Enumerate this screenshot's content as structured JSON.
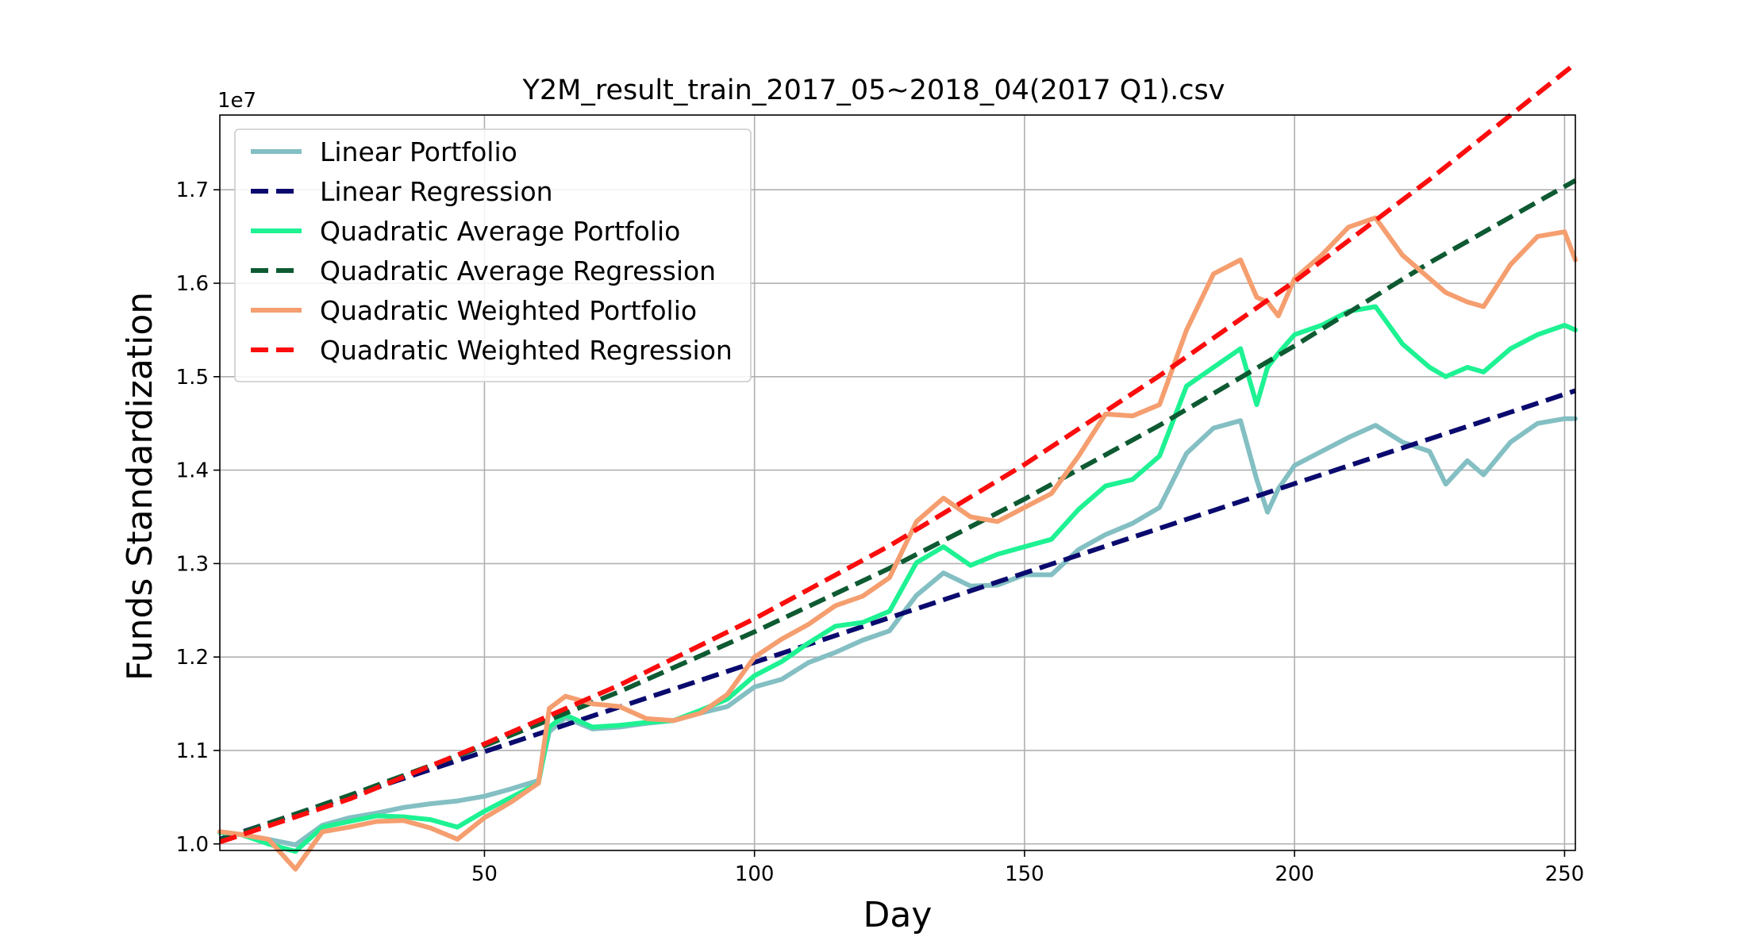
{
  "chart_data": {
    "type": "line",
    "title": "Y2M_result_train_2017_05~2018_04(2017 Q1).csv",
    "xlabel": "Day",
    "ylabel": "Funds Standardization",
    "y_offset_text": "1e7",
    "xlim": [
      1,
      252
    ],
    "ylim": [
      9930000,
      17800000
    ],
    "x_ticks": [
      50,
      100,
      150,
      200,
      250
    ],
    "y_ticks": [
      10000000,
      11000000,
      12000000,
      13000000,
      14000000,
      15000000,
      16000000,
      17000000
    ],
    "y_tick_labels": [
      "1.0",
      "1.1",
      "1.2",
      "1.3",
      "1.4",
      "1.5",
      "1.6",
      "1.7"
    ],
    "grid": true,
    "legend_position": "upper-left",
    "series": [
      {
        "name": "Linear Portfolio",
        "color": "#83bfc3",
        "style": "solid",
        "x": [
          1,
          5,
          10,
          15,
          20,
          25,
          30,
          35,
          40,
          45,
          50,
          55,
          60,
          62,
          65,
          70,
          75,
          80,
          85,
          90,
          95,
          100,
          105,
          110,
          115,
          120,
          125,
          130,
          135,
          140,
          145,
          150,
          155,
          160,
          165,
          170,
          175,
          180,
          185,
          190,
          193,
          195,
          197,
          200,
          205,
          210,
          215,
          220,
          225,
          228,
          232,
          235,
          240,
          245,
          250,
          252
        ],
        "y": [
          10130000,
          10100000,
          10050000,
          9990000,
          10200000,
          10280000,
          10330000,
          10390000,
          10430000,
          10460000,
          10510000,
          10590000,
          10680000,
          11200000,
          11350000,
          11230000,
          11250000,
          11290000,
          11320000,
          11400000,
          11470000,
          11680000,
          11760000,
          11940000,
          12050000,
          12180000,
          12280000,
          12660000,
          12900000,
          12760000,
          12770000,
          12880000,
          12880000,
          13150000,
          13310000,
          13430000,
          13600000,
          14180000,
          14450000,
          14530000,
          13900000,
          13550000,
          13800000,
          14050000,
          14200000,
          14350000,
          14480000,
          14300000,
          14200000,
          13850000,
          14100000,
          13950000,
          14300000,
          14500000,
          14550000,
          14550000
        ]
      },
      {
        "name": "Linear Regression",
        "color": "#0a0a6e",
        "style": "dashed",
        "x": [
          1,
          252
        ],
        "y": [
          10050000,
          14850000
        ]
      },
      {
        "name": "Quadratic Average Portfolio",
        "color": "#1ef293",
        "style": "solid",
        "x": [
          1,
          5,
          10,
          15,
          20,
          25,
          30,
          35,
          40,
          45,
          50,
          55,
          60,
          62,
          65,
          70,
          75,
          80,
          85,
          90,
          95,
          100,
          105,
          110,
          115,
          120,
          125,
          130,
          135,
          140,
          145,
          150,
          155,
          160,
          165,
          170,
          175,
          180,
          185,
          190,
          193,
          195,
          197,
          200,
          205,
          210,
          215,
          220,
          225,
          228,
          232,
          235,
          240,
          245,
          250,
          252
        ],
        "y": [
          10120000,
          10100000,
          10000000,
          9920000,
          10180000,
          10240000,
          10300000,
          10290000,
          10260000,
          10180000,
          10350000,
          10500000,
          10650000,
          11250000,
          11380000,
          11250000,
          11270000,
          11300000,
          11320000,
          11430000,
          11550000,
          11800000,
          11950000,
          12150000,
          12330000,
          12370000,
          12490000,
          13010000,
          13180000,
          12980000,
          13100000,
          13180000,
          13260000,
          13580000,
          13830000,
          13900000,
          14150000,
          14900000,
          15100000,
          15300000,
          14700000,
          15100000,
          15250000,
          15450000,
          15550000,
          15700000,
          15750000,
          15350000,
          15100000,
          15000000,
          15100000,
          15050000,
          15300000,
          15450000,
          15550000,
          15500000
        ]
      },
      {
        "name": "Quadratic Average Regression",
        "color": "#0e5a32",
        "style": "dashed",
        "x": [
          1,
          25,
          50,
          75,
          100,
          125,
          150,
          175,
          200,
          225,
          252
        ],
        "y": [
          10040000,
          10520000,
          11050000,
          11630000,
          12270000,
          12950000,
          13690000,
          14480000,
          15330000,
          16220000,
          17100000
        ]
      },
      {
        "name": "Quadratic Weighted Portfolio",
        "color": "#f59e6f",
        "style": "solid",
        "x": [
          1,
          5,
          10,
          15,
          20,
          25,
          30,
          35,
          40,
          45,
          50,
          55,
          60,
          62,
          65,
          70,
          75,
          80,
          85,
          90,
          95,
          100,
          105,
          110,
          115,
          120,
          125,
          130,
          135,
          140,
          145,
          150,
          155,
          160,
          165,
          170,
          175,
          180,
          185,
          190,
          193,
          195,
          197,
          200,
          205,
          210,
          215,
          220,
          225,
          228,
          232,
          235,
          240,
          245,
          250,
          252
        ],
        "y": [
          10130000,
          10100000,
          10050000,
          9730000,
          10130000,
          10180000,
          10240000,
          10250000,
          10170000,
          10050000,
          10280000,
          10450000,
          10650000,
          11450000,
          11580000,
          11500000,
          11470000,
          11340000,
          11320000,
          11400000,
          11600000,
          12000000,
          12190000,
          12350000,
          12550000,
          12650000,
          12850000,
          13450000,
          13700000,
          13500000,
          13450000,
          13600000,
          13750000,
          14150000,
          14600000,
          14580000,
          14700000,
          15500000,
          16100000,
          16250000,
          15850000,
          15800000,
          15650000,
          16050000,
          16300000,
          16600000,
          16700000,
          16300000,
          16050000,
          15900000,
          15800000,
          15750000,
          16200000,
          16500000,
          16550000,
          16250000
        ]
      },
      {
        "name": "Quadratic Weighted Regression",
        "color": "#fb0d0d",
        "style": "dashed",
        "x": [
          1,
          25,
          50,
          75,
          100,
          125,
          150,
          175,
          200,
          225,
          252
        ],
        "y": [
          10020000,
          10480000,
          11070000,
          11700000,
          12410000,
          13190000,
          14060000,
          15010000,
          16020000,
          17110000,
          18350000
        ]
      }
    ]
  }
}
